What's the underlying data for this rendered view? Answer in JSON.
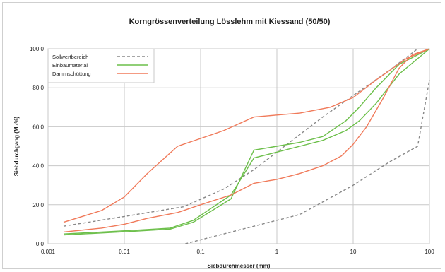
{
  "chart_data": {
    "type": "line",
    "title": "Korngrössenverteilung Lösslehm mit Kiessand (50/50)",
    "xlabel": "Siebdurchmesser (mm)",
    "ylabel": "Siebdurchgang (M.-%)",
    "x_scale": "log",
    "xlim": [
      0.001,
      100
    ],
    "ylim": [
      0,
      100
    ],
    "x_ticks": [
      "0.001",
      "0.01",
      "0.1",
      "1",
      "10",
      "100"
    ],
    "x_tick_values": [
      0.001,
      0.01,
      0.1,
      1,
      10,
      100
    ],
    "y_ticks": [
      "0.0",
      "20.0",
      "40.0",
      "60.0",
      "80.0",
      "100.0"
    ],
    "y_tick_values": [
      0,
      20,
      40,
      60,
      80,
      100
    ],
    "grid": true,
    "legend_position": "top-left",
    "legend": [
      {
        "name": "Sollwertbereich",
        "style": "dashed",
        "color": "#888888"
      },
      {
        "name": "Einbaumaterial",
        "style": "solid",
        "color": "#6cbf4a"
      },
      {
        "name": "Dammschüttung",
        "style": "solid",
        "color": "#f07a5a"
      }
    ],
    "series": [
      {
        "legend_index": 0,
        "points": [
          [
            0.0016,
            9
          ],
          [
            0.01,
            14
          ],
          [
            0.06,
            19
          ],
          [
            0.2,
            28
          ],
          [
            0.5,
            38
          ],
          [
            1,
            47
          ],
          [
            2,
            56
          ],
          [
            4,
            65
          ],
          [
            10,
            76
          ],
          [
            30,
            89
          ],
          [
            70,
            100
          ]
        ]
      },
      {
        "legend_index": 0,
        "points": [
          [
            0.063,
            0
          ],
          [
            0.5,
            9
          ],
          [
            2,
            15
          ],
          [
            10,
            30
          ],
          [
            30,
            42
          ],
          [
            70,
            50
          ],
          [
            100,
            84
          ]
        ]
      },
      {
        "legend_index": 1,
        "points": [
          [
            0.0016,
            4.5
          ],
          [
            0.005,
            5.5
          ],
          [
            0.015,
            6.5
          ],
          [
            0.04,
            7.5
          ],
          [
            0.08,
            11
          ],
          [
            0.25,
            23
          ],
          [
            0.5,
            48
          ],
          [
            1,
            50
          ],
          [
            2,
            52
          ],
          [
            4,
            55
          ],
          [
            8,
            63
          ],
          [
            12,
            70
          ],
          [
            20,
            80
          ],
          [
            40,
            92
          ],
          [
            100,
            100
          ]
        ]
      },
      {
        "legend_index": 1,
        "points": [
          [
            0.0016,
            5
          ],
          [
            0.005,
            6
          ],
          [
            0.015,
            7
          ],
          [
            0.04,
            8
          ],
          [
            0.08,
            12
          ],
          [
            0.25,
            25
          ],
          [
            0.5,
            44
          ],
          [
            1,
            47
          ],
          [
            2,
            50
          ],
          [
            4,
            53
          ],
          [
            8,
            58
          ],
          [
            12,
            63
          ],
          [
            20,
            72
          ],
          [
            40,
            87
          ],
          [
            100,
            100
          ]
        ]
      },
      {
        "legend_index": 2,
        "points": [
          [
            0.0016,
            11
          ],
          [
            0.005,
            17
          ],
          [
            0.01,
            24
          ],
          [
            0.02,
            36
          ],
          [
            0.05,
            50
          ],
          [
            0.1,
            54
          ],
          [
            0.2,
            58
          ],
          [
            0.5,
            65
          ],
          [
            1,
            66
          ],
          [
            2,
            67
          ],
          [
            5,
            70
          ],
          [
            10,
            75
          ],
          [
            20,
            84
          ],
          [
            50,
            95
          ],
          [
            100,
            100
          ]
        ]
      },
      {
        "legend_index": 2,
        "points": [
          [
            0.0016,
            6
          ],
          [
            0.005,
            8
          ],
          [
            0.01,
            10
          ],
          [
            0.02,
            13
          ],
          [
            0.05,
            16
          ],
          [
            0.1,
            20
          ],
          [
            0.25,
            25
          ],
          [
            0.5,
            31
          ],
          [
            1,
            33
          ],
          [
            2,
            36
          ],
          [
            4,
            40
          ],
          [
            7,
            45
          ],
          [
            10,
            51
          ],
          [
            15,
            60
          ],
          [
            25,
            75
          ],
          [
            40,
            90
          ],
          [
            60,
            97
          ],
          [
            100,
            100
          ]
        ]
      }
    ]
  }
}
